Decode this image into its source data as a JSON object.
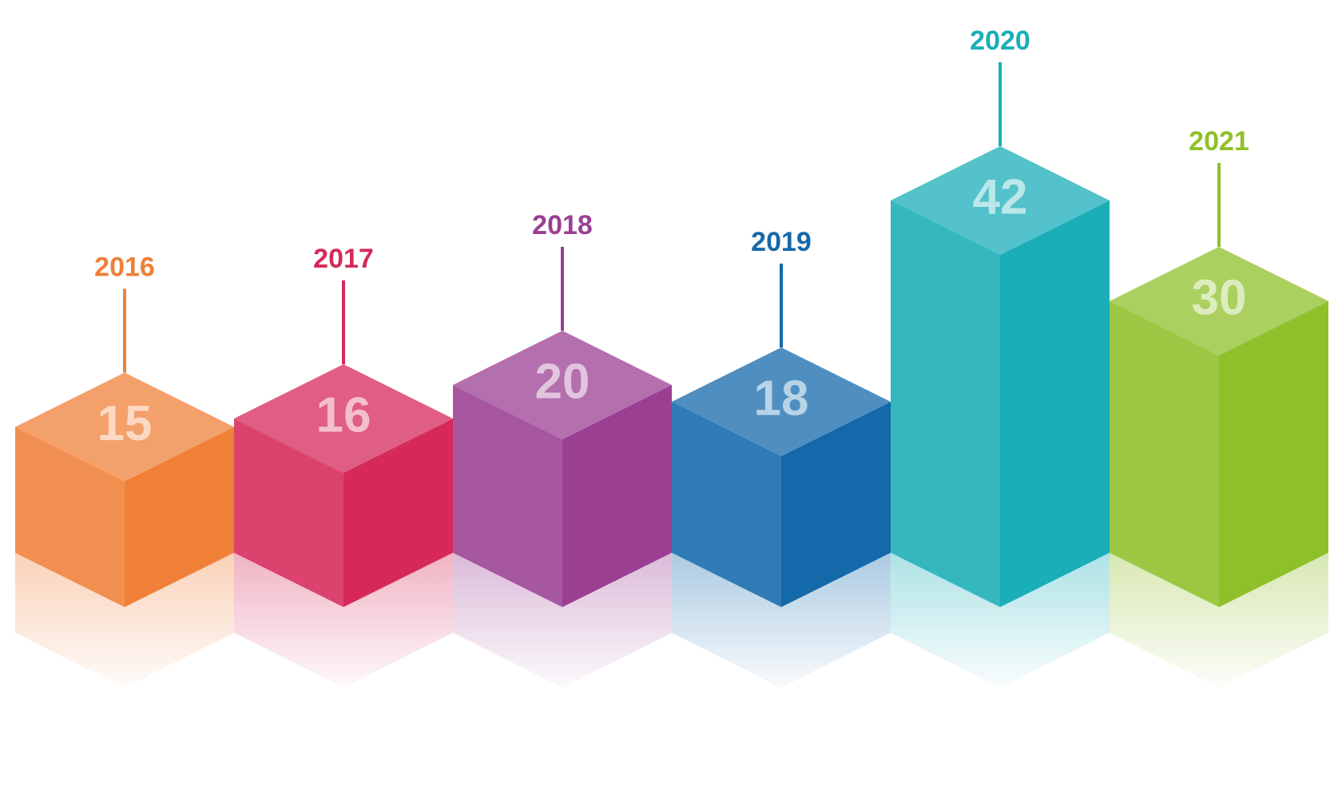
{
  "chart_data": {
    "type": "bar",
    "categories": [
      "2016",
      "2017",
      "2018",
      "2019",
      "2020",
      "2021"
    ],
    "values": [
      15,
      16,
      20,
      18,
      42,
      30
    ],
    "colors": [
      "#f08038",
      "#d6295a",
      "#9b3f93",
      "#1469ab",
      "#1aaeb8",
      "#8fc02a"
    ]
  }
}
